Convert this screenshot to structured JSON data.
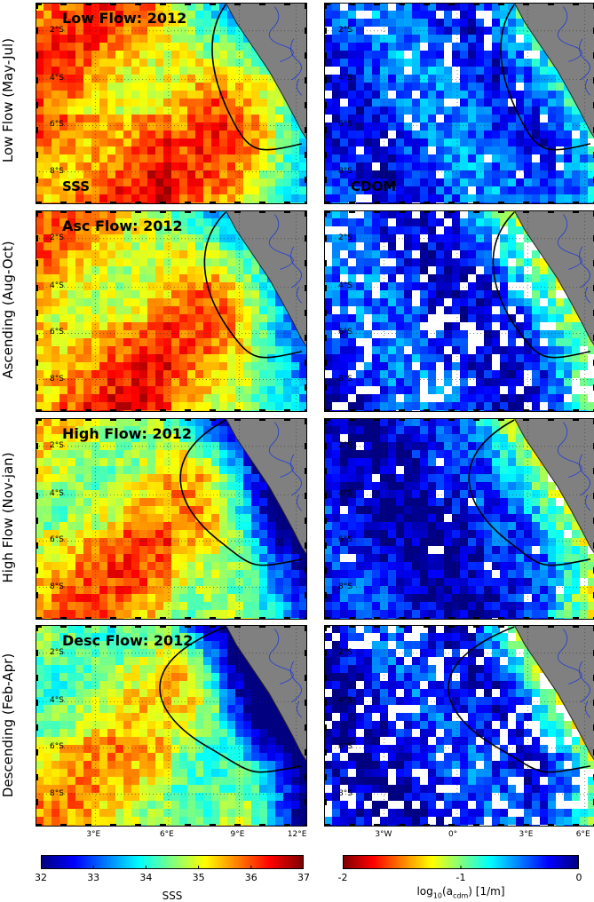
{
  "chart_data": {
    "type": "heatmap",
    "rows": [
      {
        "label": "Low Flow (May-Jul)",
        "title": "Low Flow: 2012"
      },
      {
        "label": "Ascending (Aug-Oct)",
        "title": "Asc Flow: 2012"
      },
      {
        "label": "High Flow (Nov-jan)",
        "title": "High Flow: 2012"
      },
      {
        "label": "Descending (Feb-Apr)",
        "title": "Desc Flow: 2012"
      }
    ],
    "columns": [
      {
        "variable": "SSS",
        "corner_label": "SSS",
        "colorbar": {
          "min": 32,
          "max": 37,
          "ticks": [
            "32",
            "33",
            "34",
            "35",
            "36",
            "37"
          ],
          "label": "SSS"
        }
      },
      {
        "variable": "CDOM",
        "corner_label": "CDOM",
        "colorbar": {
          "min": -2,
          "max": 0,
          "ticks": [
            "-2",
            "-1",
            "0"
          ],
          "label": "log10(a_cdm) [1/m]"
        }
      }
    ],
    "y_ticks": [
      "2°S",
      "4°S",
      "6°S",
      "8°S"
    ],
    "x_ticks_left": [
      "3°E",
      "6°E",
      "9°E",
      "12°E"
    ],
    "x_ticks_right": [
      "3°W",
      "0°",
      "3°E",
      "6°E"
    ],
    "colormap": "jet",
    "land_color": "#808080",
    "river_color": "#1f3bd6",
    "contour_color": "#000000",
    "grid": true
  }
}
